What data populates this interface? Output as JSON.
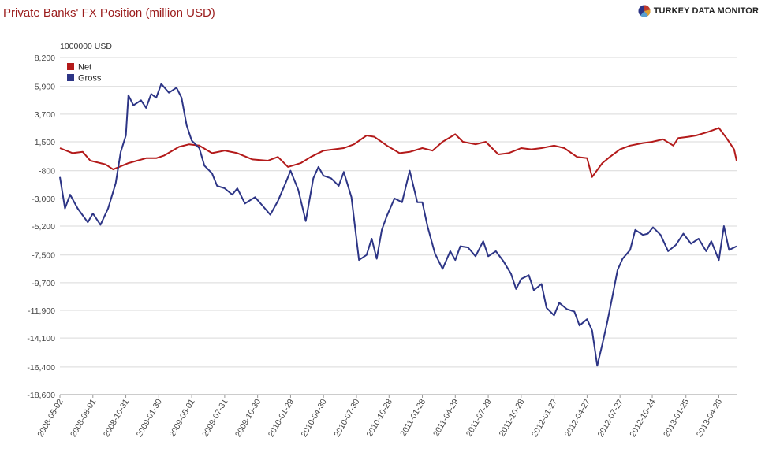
{
  "title": "Private Banks' FX Position (million USD)",
  "brand": {
    "name": "TURKEY DATA MONITOR",
    "logo_icon": "pie-chart-icon"
  },
  "chart_data": {
    "type": "line",
    "unit_label": "1000000 USD",
    "grid": true,
    "legend_position": "top-left",
    "ylim": [
      -18600,
      8200
    ],
    "yticks": [
      -18600,
      -16400,
      -14100,
      -11900,
      -9700,
      -7500,
      -5200,
      -3000,
      -800,
      1500,
      3700,
      5900,
      8200
    ],
    "x_range": [
      "2008-05-02",
      "2013-06-14"
    ],
    "xticks": [
      "2008-05-02",
      "2008-08-01",
      "2008-10-31",
      "2009-01-30",
      "2009-05-01",
      "2009-07-31",
      "2009-10-30",
      "2010-01-29",
      "2010-04-30",
      "2010-07-30",
      "2010-10-28",
      "2011-01-28",
      "2011-04-29",
      "2011-07-29",
      "2011-10-28",
      "2012-01-27",
      "2012-04-27",
      "2012-07-27",
      "2012-10-24",
      "2013-01-25",
      "2013-04-26"
    ],
    "series": [
      {
        "name": "Net",
        "color": "#b31a1a",
        "points": [
          [
            "2008-05-02",
            1000
          ],
          [
            "2008-06-06",
            600
          ],
          [
            "2008-07-04",
            700
          ],
          [
            "2008-07-25",
            0
          ],
          [
            "2008-09-05",
            -300
          ],
          [
            "2008-09-26",
            -700
          ],
          [
            "2008-11-07",
            -200
          ],
          [
            "2008-12-26",
            200
          ],
          [
            "2009-01-23",
            200
          ],
          [
            "2009-02-13",
            400
          ],
          [
            "2009-03-27",
            1100
          ],
          [
            "2009-04-24",
            1300
          ],
          [
            "2009-05-22",
            1200
          ],
          [
            "2009-06-26",
            600
          ],
          [
            "2009-07-31",
            800
          ],
          [
            "2009-09-04",
            600
          ],
          [
            "2009-10-16",
            100
          ],
          [
            "2009-11-27",
            0
          ],
          [
            "2009-12-25",
            300
          ],
          [
            "2010-01-22",
            -500
          ],
          [
            "2010-02-26",
            -200
          ],
          [
            "2010-03-26",
            300
          ],
          [
            "2010-04-30",
            800
          ],
          [
            "2010-05-28",
            900
          ],
          [
            "2010-06-25",
            1000
          ],
          [
            "2010-07-23",
            1300
          ],
          [
            "2010-08-27",
            2000
          ],
          [
            "2010-09-17",
            1900
          ],
          [
            "2010-10-22",
            1200
          ],
          [
            "2010-11-26",
            600
          ],
          [
            "2010-12-24",
            700
          ],
          [
            "2011-01-28",
            1000
          ],
          [
            "2011-02-25",
            800
          ],
          [
            "2011-03-25",
            1500
          ],
          [
            "2011-04-29",
            2100
          ],
          [
            "2011-05-20",
            1500
          ],
          [
            "2011-06-24",
            1300
          ],
          [
            "2011-07-22",
            1500
          ],
          [
            "2011-08-26",
            500
          ],
          [
            "2011-09-23",
            600
          ],
          [
            "2011-10-28",
            1000
          ],
          [
            "2011-11-25",
            900
          ],
          [
            "2011-12-23",
            1000
          ],
          [
            "2012-01-27",
            1200
          ],
          [
            "2012-02-24",
            1000
          ],
          [
            "2012-03-30",
            300
          ],
          [
            "2012-04-27",
            200
          ],
          [
            "2012-05-11",
            -1300
          ],
          [
            "2012-06-08",
            -200
          ],
          [
            "2012-06-29",
            300
          ],
          [
            "2012-07-27",
            900
          ],
          [
            "2012-08-24",
            1200
          ],
          [
            "2012-09-28",
            1400
          ],
          [
            "2012-10-24",
            1500
          ],
          [
            "2012-11-23",
            1700
          ],
          [
            "2012-12-21",
            1200
          ],
          [
            "2013-01-04",
            1800
          ],
          [
            "2013-02-01",
            1900
          ],
          [
            "2013-02-22",
            2000
          ],
          [
            "2013-03-29",
            2300
          ],
          [
            "2013-04-26",
            2600
          ],
          [
            "2013-05-17",
            1800
          ],
          [
            "2013-06-07",
            900
          ],
          [
            "2013-06-14",
            0
          ]
        ]
      },
      {
        "name": "Gross",
        "color": "#2d3586",
        "points": [
          [
            "2008-05-02",
            -1300
          ],
          [
            "2008-05-16",
            -3800
          ],
          [
            "2008-05-30",
            -2700
          ],
          [
            "2008-06-20",
            -3800
          ],
          [
            "2008-07-18",
            -4900
          ],
          [
            "2008-08-01",
            -4200
          ],
          [
            "2008-08-22",
            -5100
          ],
          [
            "2008-09-12",
            -3800
          ],
          [
            "2008-10-03",
            -1800
          ],
          [
            "2008-10-17",
            700
          ],
          [
            "2008-10-31",
            2000
          ],
          [
            "2008-11-07",
            5200
          ],
          [
            "2008-11-21",
            4400
          ],
          [
            "2008-12-12",
            4800
          ],
          [
            "2008-12-26",
            4200
          ],
          [
            "2009-01-09",
            5300
          ],
          [
            "2009-01-23",
            5000
          ],
          [
            "2009-02-06",
            6100
          ],
          [
            "2009-02-27",
            5400
          ],
          [
            "2009-03-20",
            5800
          ],
          [
            "2009-04-03",
            5000
          ],
          [
            "2009-04-17",
            2800
          ],
          [
            "2009-05-01",
            1600
          ],
          [
            "2009-05-22",
            1000
          ],
          [
            "2009-06-05",
            -400
          ],
          [
            "2009-06-26",
            -1000
          ],
          [
            "2009-07-10",
            -2000
          ],
          [
            "2009-07-31",
            -2200
          ],
          [
            "2009-08-21",
            -2700
          ],
          [
            "2009-09-04",
            -2200
          ],
          [
            "2009-09-25",
            -3400
          ],
          [
            "2009-10-23",
            -2900
          ],
          [
            "2009-11-13",
            -3600
          ],
          [
            "2009-12-04",
            -4300
          ],
          [
            "2009-12-25",
            -3200
          ],
          [
            "2010-01-15",
            -1800
          ],
          [
            "2010-01-29",
            -800
          ],
          [
            "2010-02-19",
            -2300
          ],
          [
            "2010-03-12",
            -4800
          ],
          [
            "2010-04-02",
            -1400
          ],
          [
            "2010-04-16",
            -500
          ],
          [
            "2010-04-30",
            -1200
          ],
          [
            "2010-05-21",
            -1400
          ],
          [
            "2010-06-11",
            -2000
          ],
          [
            "2010-06-25",
            -900
          ],
          [
            "2010-07-16",
            -2900
          ],
          [
            "2010-08-06",
            -7900
          ],
          [
            "2010-08-27",
            -7500
          ],
          [
            "2010-09-10",
            -6200
          ],
          [
            "2010-09-24",
            -7800
          ],
          [
            "2010-10-08",
            -5500
          ],
          [
            "2010-10-22",
            -4400
          ],
          [
            "2010-11-12",
            -3000
          ],
          [
            "2010-12-03",
            -3300
          ],
          [
            "2010-12-24",
            -800
          ],
          [
            "2011-01-14",
            -3300
          ],
          [
            "2011-01-28",
            -3300
          ],
          [
            "2011-02-11",
            -5200
          ],
          [
            "2011-03-04",
            -7400
          ],
          [
            "2011-03-25",
            -8600
          ],
          [
            "2011-04-15",
            -7200
          ],
          [
            "2011-04-29",
            -7900
          ],
          [
            "2011-05-13",
            -6800
          ],
          [
            "2011-06-03",
            -6900
          ],
          [
            "2011-06-24",
            -7600
          ],
          [
            "2011-07-15",
            -6400
          ],
          [
            "2011-07-29",
            -7600
          ],
          [
            "2011-08-19",
            -7200
          ],
          [
            "2011-09-09",
            -8000
          ],
          [
            "2011-09-30",
            -9000
          ],
          [
            "2011-10-14",
            -10200
          ],
          [
            "2011-10-28",
            -9400
          ],
          [
            "2011-11-18",
            -9100
          ],
          [
            "2011-12-02",
            -10300
          ],
          [
            "2011-12-23",
            -9800
          ],
          [
            "2012-01-06",
            -11700
          ],
          [
            "2012-01-27",
            -12300
          ],
          [
            "2012-02-10",
            -11300
          ],
          [
            "2012-03-02",
            -11800
          ],
          [
            "2012-03-23",
            -12000
          ],
          [
            "2012-04-06",
            -13100
          ],
          [
            "2012-04-27",
            -12600
          ],
          [
            "2012-05-11",
            -13500
          ],
          [
            "2012-05-25",
            -16300
          ],
          [
            "2012-06-08",
            -14600
          ],
          [
            "2012-06-22",
            -12800
          ],
          [
            "2012-07-06",
            -10800
          ],
          [
            "2012-07-20",
            -8700
          ],
          [
            "2012-08-03",
            -7800
          ],
          [
            "2012-08-24",
            -7100
          ],
          [
            "2012-09-07",
            -5500
          ],
          [
            "2012-09-28",
            -5900
          ],
          [
            "2012-10-12",
            -5800
          ],
          [
            "2012-10-26",
            -5300
          ],
          [
            "2012-11-16",
            -5900
          ],
          [
            "2012-12-07",
            -7200
          ],
          [
            "2012-12-28",
            -6700
          ],
          [
            "2013-01-18",
            -5800
          ],
          [
            "2013-02-08",
            -6600
          ],
          [
            "2013-03-01",
            -6200
          ],
          [
            "2013-03-22",
            -7200
          ],
          [
            "2013-04-05",
            -6400
          ],
          [
            "2013-04-26",
            -7900
          ],
          [
            "2013-05-10",
            -5200
          ],
          [
            "2013-05-24",
            -7100
          ],
          [
            "2013-06-14",
            -6800
          ]
        ]
      }
    ]
  }
}
